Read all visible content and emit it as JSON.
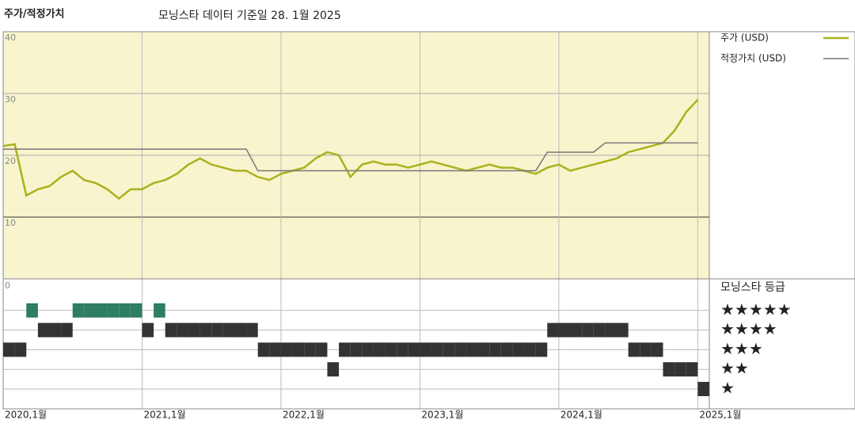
{
  "chart_data": {
    "type": "line",
    "title": "주가/적정가치",
    "subtitle": "모닝스타 데이터 기준일 28. 1월 2025",
    "x": [
      "2020-01",
      "2020-02",
      "2020-03",
      "2020-04",
      "2020-05",
      "2020-06",
      "2020-07",
      "2020-08",
      "2020-09",
      "2020-10",
      "2020-11",
      "2020-12",
      "2021-01",
      "2021-02",
      "2021-03",
      "2021-04",
      "2021-05",
      "2021-06",
      "2021-07",
      "2021-08",
      "2021-09",
      "2021-10",
      "2021-11",
      "2021-12",
      "2022-01",
      "2022-02",
      "2022-03",
      "2022-04",
      "2022-05",
      "2022-06",
      "2022-07",
      "2022-08",
      "2022-09",
      "2022-10",
      "2022-11",
      "2022-12",
      "2023-01",
      "2023-02",
      "2023-03",
      "2023-04",
      "2023-05",
      "2023-06",
      "2023-07",
      "2023-08",
      "2023-09",
      "2023-10",
      "2023-11",
      "2023-12",
      "2024-01",
      "2024-02",
      "2024-03",
      "2024-04",
      "2024-05",
      "2024-06",
      "2024-07",
      "2024-08",
      "2024-09",
      "2024-10",
      "2024-11",
      "2024-12",
      "2025-01"
    ],
    "series": [
      {
        "name": "주가 (USD)",
        "color": "#a9b21e",
        "width": 2.5,
        "values": [
          21.5,
          21.8,
          13.5,
          14.5,
          15,
          16.5,
          17.5,
          16,
          15.5,
          14.5,
          13,
          14.5,
          14.5,
          15.5,
          16,
          17,
          18.5,
          19.5,
          18.5,
          18,
          17.5,
          17.5,
          16.5,
          16,
          17,
          17.5,
          18,
          19.5,
          20.5,
          20,
          16.5,
          18.5,
          19,
          18.5,
          18.5,
          18,
          18.5,
          19,
          18.5,
          18,
          17.5,
          18,
          18.5,
          18,
          18,
          17.5,
          17,
          18,
          18.5,
          17.5,
          18,
          18.5,
          19,
          19.5,
          20.5,
          21,
          21.5,
          22,
          24,
          27,
          29
        ]
      },
      {
        "name": "적정가치 (USD)",
        "color": "#777777",
        "width": 1.5,
        "values": [
          21,
          21,
          21,
          21,
          21,
          21,
          21,
          21,
          21,
          21,
          21,
          21,
          21,
          21,
          21,
          21,
          21,
          21,
          21,
          21,
          21,
          21,
          17.5,
          17.5,
          17.5,
          17.5,
          17.5,
          17.5,
          17.5,
          17.5,
          17.5,
          17.5,
          17.5,
          17.5,
          17.5,
          17.5,
          17.5,
          17.5,
          17.5,
          17.5,
          17.5,
          17.5,
          17.5,
          17.5,
          17.5,
          17.5,
          17.5,
          20.5,
          20.5,
          20.5,
          20.5,
          20.5,
          22,
          22,
          22,
          22,
          22,
          22,
          22,
          22,
          22
        ]
      }
    ],
    "xlim": [
      "2020-01",
      "2025-02"
    ],
    "xticks": [
      {
        "value": "2020-01",
        "label": "2020,1월"
      },
      {
        "value": "2021-01",
        "label": "2021,1월"
      },
      {
        "value": "2022-01",
        "label": "2022,1월"
      },
      {
        "value": "2023-01",
        "label": "2023,1월"
      },
      {
        "value": "2024-01",
        "label": "2024,1월"
      },
      {
        "value": "2025-01",
        "label": "2025,1월"
      }
    ],
    "ylim": [
      0,
      40
    ],
    "yticks": [
      0,
      10,
      20,
      30,
      40
    ],
    "grid": true,
    "ratings": {
      "title": "모닝스타 등급",
      "labels": [
        "★",
        "★★",
        "★★★",
        "★★★★",
        "★★★★★"
      ],
      "colors": [
        "#333333",
        "#333333",
        "#333333",
        "#333333",
        "#2e7d64"
      ],
      "values": [
        3,
        3,
        5,
        4,
        4,
        4,
        5,
        5,
        5,
        5,
        5,
        5,
        4,
        5,
        4,
        4,
        4,
        4,
        4,
        4,
        4,
        4,
        3,
        3,
        3,
        3,
        3,
        3,
        2,
        3,
        3,
        3,
        3,
        3,
        3,
        3,
        3,
        3,
        3,
        3,
        3,
        3,
        3,
        3,
        3,
        3,
        3,
        4,
        4,
        4,
        4,
        4,
        4,
        4,
        3,
        3,
        3,
        2,
        2,
        2,
        1
      ]
    }
  }
}
